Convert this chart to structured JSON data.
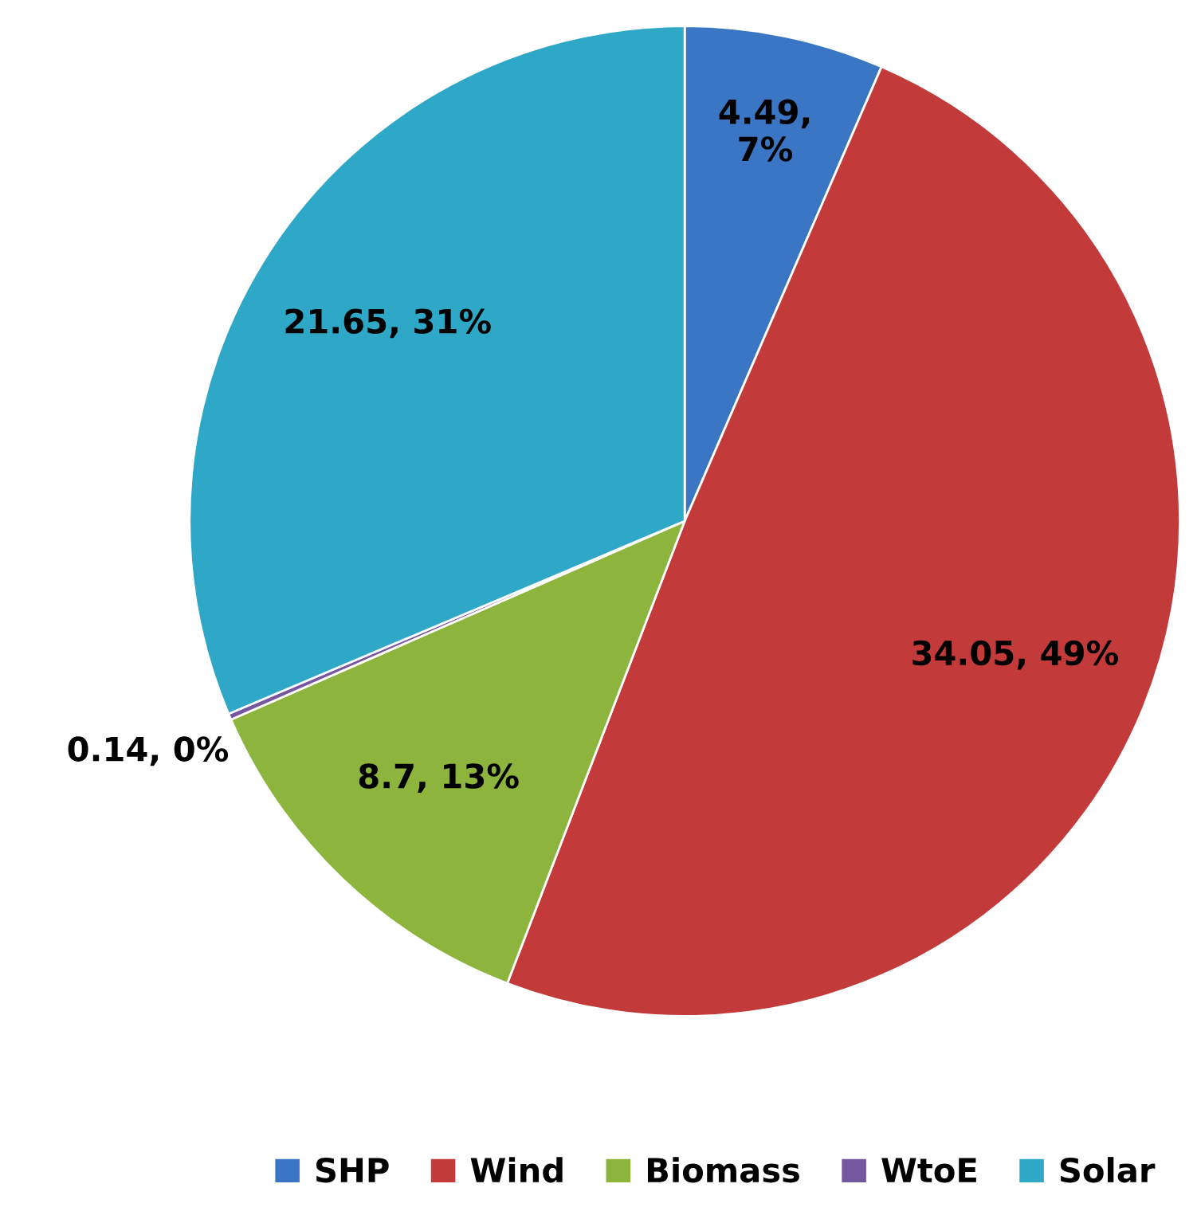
{
  "chart_data": {
    "type": "pie",
    "categories": [
      "SHP",
      "Wind",
      "Biomass",
      "WtoE",
      "Solar"
    ],
    "values": [
      4.49,
      34.05,
      8.7,
      0.14,
      21.65
    ],
    "colors": [
      "#3a76c4",
      "#c23a3a",
      "#8db53e",
      "#7556a0",
      "#2fa8c8"
    ],
    "value_labels": [
      "4.49,\n7%",
      "34.05, 49%",
      "8.7, 13%",
      "0.14, 0%",
      "21.65, 31%"
    ],
    "legend": "bottom"
  }
}
